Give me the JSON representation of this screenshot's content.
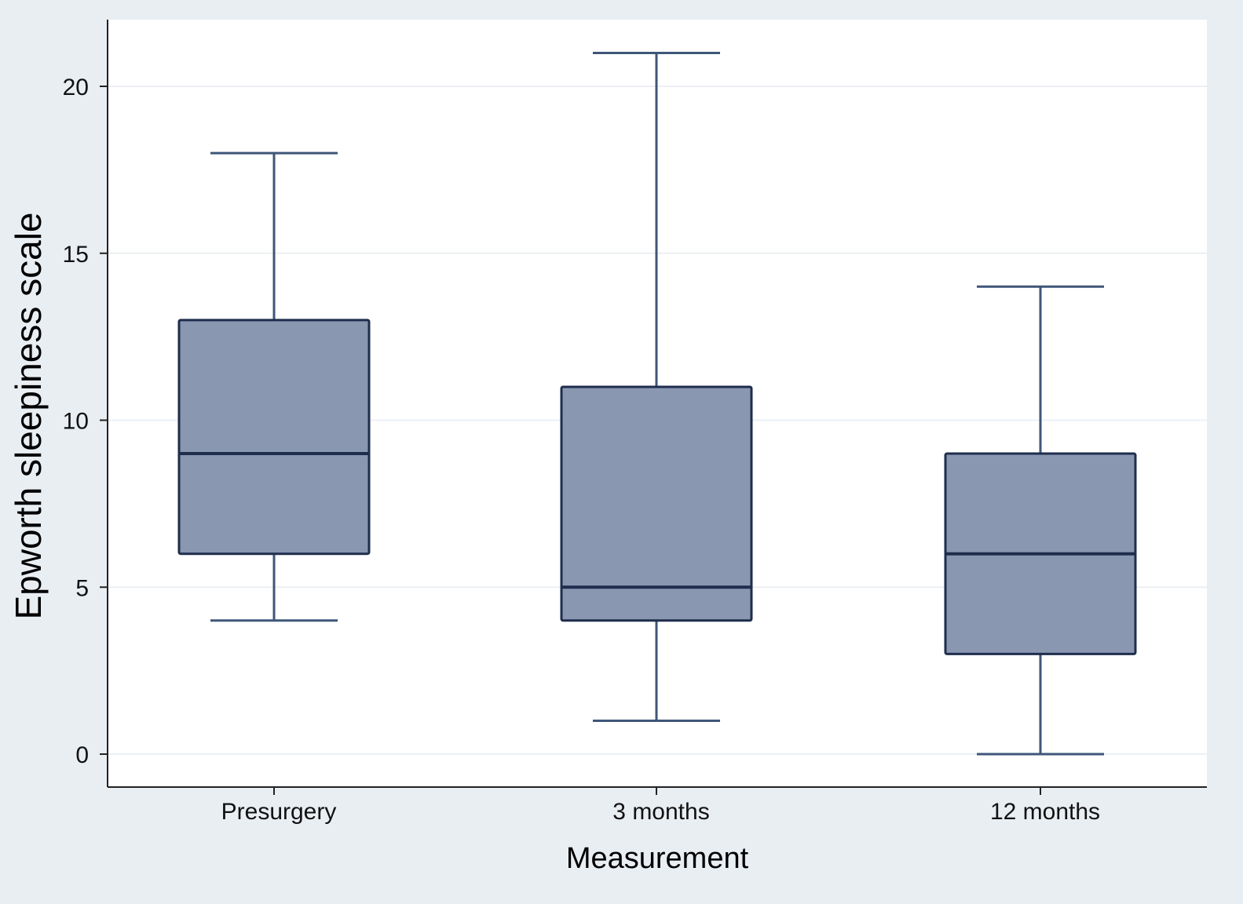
{
  "chart_data": {
    "type": "box",
    "xlabel": "Measurement",
    "ylabel": "Epworth sleepiness scale",
    "categories": [
      "Presurgery",
      "3 months",
      "12 months"
    ],
    "boxes": [
      {
        "category": "Presurgery",
        "whisker_low": 4,
        "q1": 6,
        "median": 9,
        "q3": 13,
        "whisker_high": 18
      },
      {
        "category": "3 months",
        "whisker_low": 1,
        "q1": 4,
        "median": 5,
        "q3": 11,
        "whisker_high": 21
      },
      {
        "category": "12 months",
        "whisker_low": 0,
        "q1": 3,
        "median": 6,
        "q3": 9,
        "whisker_high": 14
      }
    ],
    "yticks": [
      0,
      5,
      10,
      15,
      20
    ],
    "ylim": [
      -1,
      22
    ],
    "grid": true
  },
  "colors": {
    "background": "#e9eef3",
    "plot_region": "#ffffff",
    "box_fill": "#8a97b1",
    "box_stroke": "#1f2d4d",
    "whisker": "#3f5679",
    "gridline": "#ecf0f4"
  }
}
